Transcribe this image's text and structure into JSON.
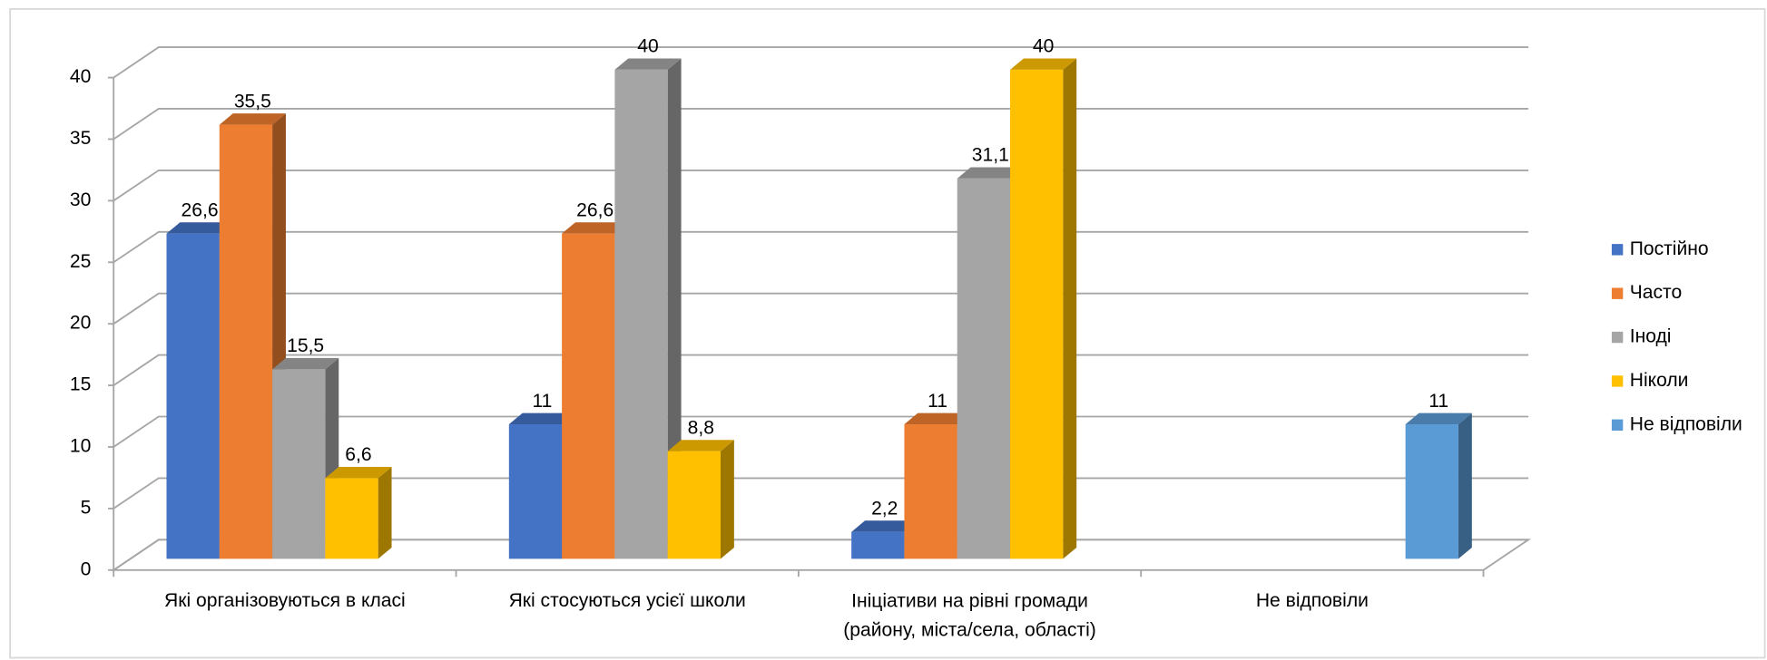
{
  "chart_data": {
    "type": "bar3d",
    "categories": [
      "Які організовуються в класі",
      "Які стосуються усієї школи",
      "Ініціативи на рівні громади\n(району, міста/села, області)",
      "Не відповіли"
    ],
    "series": [
      {
        "name": "Постійно",
        "color": "#4472c4",
        "values": [
          26.6,
          11,
          2.2,
          null
        ],
        "value_labels": [
          "26,6",
          "11",
          "2,2",
          null
        ]
      },
      {
        "name": "Часто",
        "color": "#ed7d31",
        "values": [
          35.5,
          26.6,
          11,
          null
        ],
        "value_labels": [
          "35,5",
          "26,6",
          "11",
          null
        ]
      },
      {
        "name": "Іноді",
        "color": "#a5a5a5",
        "values": [
          15.5,
          40,
          31.1,
          null
        ],
        "value_labels": [
          "15,5",
          "40",
          "31,1",
          null
        ]
      },
      {
        "name": "Ніколи",
        "color": "#ffc000",
        "values": [
          6.6,
          8.8,
          40,
          null
        ],
        "value_labels": [
          "6,6",
          "8,8",
          "40",
          null
        ]
      },
      {
        "name": "Не відповіли",
        "color": "#5b9bd5",
        "values": [
          null,
          null,
          null,
          11
        ],
        "value_labels": [
          null,
          null,
          null,
          "11"
        ]
      }
    ],
    "ylim": [
      0,
      40
    ],
    "yticks": [
      0,
      5,
      10,
      15,
      20,
      25,
      30,
      35,
      40
    ],
    "grid": true,
    "legend": "right"
  }
}
